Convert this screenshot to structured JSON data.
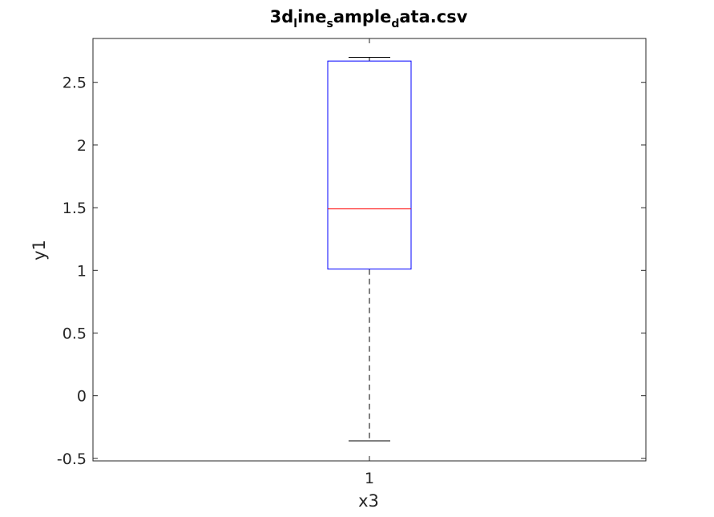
{
  "chart_data": {
    "type": "box",
    "title_parts": [
      {
        "text": "3d",
        "sub": false
      },
      {
        "text": "l",
        "sub": true
      },
      {
        "text": "ine",
        "sub": false
      },
      {
        "text": "s",
        "sub": true
      },
      {
        "text": "ample",
        "sub": false
      },
      {
        "text": "d",
        "sub": true
      },
      {
        "text": "ata.csv",
        "sub": false
      }
    ],
    "xlabel": "x3",
    "ylabel": "y1",
    "categories": [
      "1"
    ],
    "ylim": [
      -0.52,
      2.85
    ],
    "yticks": [
      -0.5,
      0,
      0.5,
      1,
      1.5,
      2,
      2.5
    ],
    "ytick_labels": [
      "-0.5",
      "0",
      "0.5",
      "1",
      "1.5",
      "2",
      "2.5"
    ],
    "boxes": [
      {
        "category": "1",
        "whisker_low": -0.36,
        "q1": 1.01,
        "median": 1.49,
        "q3": 2.67,
        "whisker_high": 2.7
      }
    ],
    "colors": {
      "box": "#0000ff",
      "median": "#ff0000",
      "whisker": "#000000",
      "axis": "#262626"
    },
    "grid": false
  }
}
